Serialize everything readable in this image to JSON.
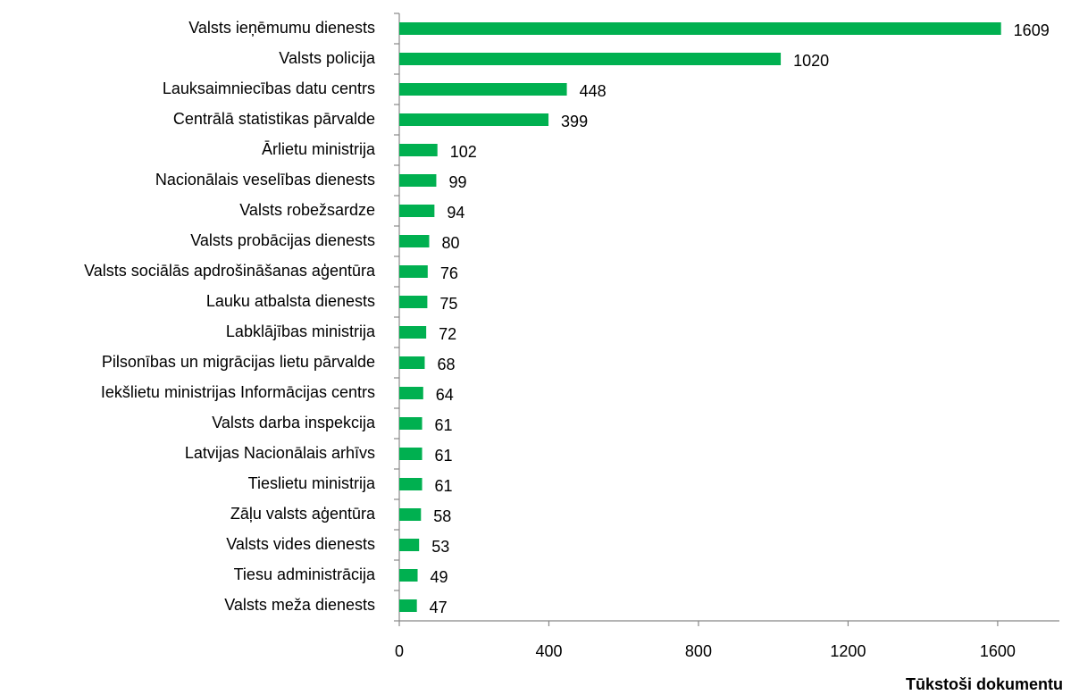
{
  "chart_data": {
    "type": "bar",
    "orientation": "horizontal",
    "categories": [
      "Valsts ieņēmumu dienests",
      "Valsts policija",
      "Lauksaimniecības datu centrs",
      "Centrālā statistikas  pārvalde",
      "Ārlietu ministrija",
      "Nacionālais veselības dienests",
      "Valsts robežsardze",
      "Valsts probācijas dienests",
      "Valsts sociālās apdrošināšanas aģentūra",
      "Lauku atbalsta dienests",
      "Labklājības ministrija",
      "Pilsonības un migrācijas lietu pārvalde",
      "Iekšlietu ministrijas Informācijas centrs",
      "Valsts darba inspekcija",
      "Latvijas Nacionālais  arhīvs",
      "Tieslietu ministrija",
      "Zāļu valsts aģentūra",
      "Valsts vides dienests",
      "Tiesu administrācija",
      "Valsts meža dienests"
    ],
    "values": [
      1609,
      1020,
      448,
      399,
      102,
      99,
      94,
      80,
      76,
      75,
      72,
      68,
      64,
      61,
      61,
      61,
      58,
      53,
      49,
      47
    ],
    "color": "#00b050",
    "xlim": [
      0,
      1765
    ],
    "xticks": [
      0,
      400,
      800,
      1200,
      1600
    ],
    "xlabel": "Tūkstoši dokumentu",
    "grid": false
  }
}
